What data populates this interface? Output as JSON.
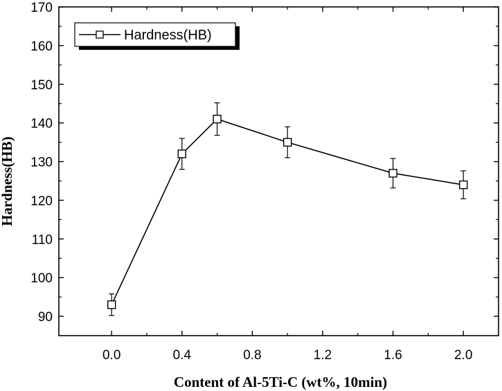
{
  "chart_data": {
    "type": "line",
    "title": "",
    "xlabel": "Content of Al-5Ti-C (wt%, 10min)",
    "ylabel": "Hardness(HB)",
    "xlim": [
      -0.3,
      2.2
    ],
    "ylim": [
      85,
      170
    ],
    "x_ticks": [
      "0.0",
      "0.4",
      "0.8",
      "1.2",
      "1.6",
      "2.0"
    ],
    "y_ticks": [
      "90",
      "100",
      "110",
      "120",
      "130",
      "140",
      "150",
      "160",
      "170"
    ],
    "grid": false,
    "legend_position": "top-left",
    "series": [
      {
        "name": "Hardness(HB)",
        "marker": "open-square",
        "color": "#000000",
        "x": [
          0.0,
          0.4,
          0.6,
          1.0,
          1.6,
          2.0
        ],
        "y": [
          93,
          132,
          141,
          135,
          127,
          124
        ],
        "error": [
          2.8,
          4.0,
          4.2,
          4.0,
          3.8,
          3.6
        ]
      }
    ]
  }
}
